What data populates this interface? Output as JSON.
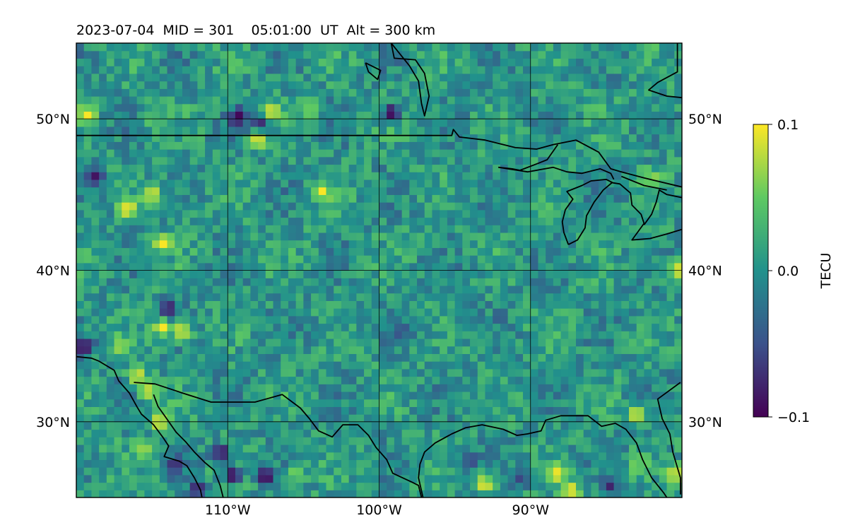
{
  "chart_data": {
    "type": "heatmap",
    "title": "2023-07-04  MID = 301    05:01:00  UT  Alt = 300 km",
    "map": {
      "lon_range": [
        -120,
        -80
      ],
      "lat_range": [
        25,
        55
      ],
      "lon_ticks": [
        {
          "value": -110,
          "label": "110°W"
        },
        {
          "value": -100,
          "label": "100°W"
        },
        {
          "value": -90,
          "label": "90°W"
        }
      ],
      "lat_ticks": [
        {
          "value": 50,
          "label": "50°N"
        },
        {
          "value": 40,
          "label": "40°N"
        },
        {
          "value": 30,
          "label": "30°N"
        }
      ],
      "grid": true,
      "grid_lines_lon": [
        -110,
        -100,
        -90
      ],
      "grid_lines_lat": [
        30,
        40,
        50
      ],
      "cell_size_deg": 0.5
    },
    "colorbar": {
      "label": "TECU",
      "min": -0.1,
      "max": 0.1,
      "ticks": [
        {
          "value": 0.1,
          "label": "0.1"
        },
        {
          "value": 0.0,
          "label": "0.0"
        },
        {
          "value": -0.1,
          "label": "−0.1"
        }
      ],
      "colormap": "viridis",
      "colormap_stops": [
        "#440154",
        "#3b528b",
        "#21918c",
        "#5ec962",
        "#fde725"
      ]
    },
    "field": {
      "background_mean": 0.005,
      "noise_amplitude": 0.03,
      "description_points": [
        {
          "lon": -119.3,
          "lat": 50.3,
          "value": 0.1
        },
        {
          "lon": -115.0,
          "lat": 50.0,
          "value": 0.05
        },
        {
          "lon": -109.3,
          "lat": 50.1,
          "value": -0.1
        },
        {
          "lon": -107.8,
          "lat": 49.6,
          "value": -0.09
        },
        {
          "lon": -107.0,
          "lat": 50.5,
          "value": 0.1
        },
        {
          "lon": -104.5,
          "lat": 50.5,
          "value": 0.07
        },
        {
          "lon": -99.2,
          "lat": 50.4,
          "value": -0.1
        },
        {
          "lon": -108.0,
          "lat": 48.7,
          "value": 0.1
        },
        {
          "lon": -118.7,
          "lat": 46.2,
          "value": -0.09
        },
        {
          "lon": -115.0,
          "lat": 45.0,
          "value": 0.1
        },
        {
          "lon": -116.6,
          "lat": 44.1,
          "value": 0.1
        },
        {
          "lon": -103.8,
          "lat": 45.2,
          "value": 0.1
        },
        {
          "lon": -114.3,
          "lat": 41.8,
          "value": 0.1
        },
        {
          "lon": -117.0,
          "lat": 35.0,
          "value": 0.08
        },
        {
          "lon": -119.5,
          "lat": 35.0,
          "value": -0.1
        },
        {
          "lon": -114.0,
          "lat": 37.5,
          "value": -0.09
        },
        {
          "lon": -114.3,
          "lat": 36.2,
          "value": 0.1
        },
        {
          "lon": -113.0,
          "lat": 36.0,
          "value": 0.1
        },
        {
          "lon": -116.0,
          "lat": 33.0,
          "value": 0.1
        },
        {
          "lon": -115.2,
          "lat": 32.0,
          "value": 0.09
        },
        {
          "lon": -114.5,
          "lat": 30.0,
          "value": 0.1
        },
        {
          "lon": -115.5,
          "lat": 28.2,
          "value": 0.07
        },
        {
          "lon": -113.5,
          "lat": 27.2,
          "value": -0.08
        },
        {
          "lon": -110.5,
          "lat": 28.0,
          "value": -0.1
        },
        {
          "lon": -109.7,
          "lat": 26.5,
          "value": -0.1
        },
        {
          "lon": -107.5,
          "lat": 26.4,
          "value": -0.1
        },
        {
          "lon": -105.5,
          "lat": 26.7,
          "value": 0.06
        },
        {
          "lon": -112.0,
          "lat": 25.6,
          "value": -0.08
        },
        {
          "lon": -98.5,
          "lat": 36.0,
          "value": -0.05
        },
        {
          "lon": -94.0,
          "lat": 27.5,
          "value": -0.06
        },
        {
          "lon": -93.0,
          "lat": 25.9,
          "value": 0.1
        },
        {
          "lon": -90.6,
          "lat": 26.3,
          "value": -0.06
        },
        {
          "lon": -88.3,
          "lat": 26.6,
          "value": 0.1
        },
        {
          "lon": -87.3,
          "lat": 25.5,
          "value": 0.1
        },
        {
          "lon": -84.8,
          "lat": 25.8,
          "value": -0.08
        },
        {
          "lon": -83.0,
          "lat": 30.5,
          "value": 0.1
        },
        {
          "lon": -80.5,
          "lat": 26.5,
          "value": 0.1
        },
        {
          "lon": -83.0,
          "lat": 27.0,
          "value": 0.06
        },
        {
          "lon": -80.3,
          "lat": 40.0,
          "value": 0.1
        },
        {
          "lon": -82.0,
          "lat": 46.0,
          "value": 0.07
        }
      ]
    },
    "coastlines": [
      [
        [
          -120,
          48.9
        ],
        [
          -115,
          48.9
        ],
        [
          -110,
          48.9
        ],
        [
          -105,
          48.9
        ],
        [
          -100,
          48.9
        ],
        [
          -95.2,
          48.9
        ],
        [
          -95.1,
          49.3
        ],
        [
          -94.7,
          48.8
        ],
        [
          -93,
          48.6
        ],
        [
          -91,
          48.1
        ],
        [
          -89.6,
          48
        ],
        [
          -88.5,
          48.3
        ],
        [
          -87,
          48.6
        ],
        [
          -85.5,
          47.8
        ],
        [
          -84.7,
          46.7
        ],
        [
          -84,
          46.5
        ],
        [
          -82.5,
          46.1
        ],
        [
          -80,
          45.5
        ]
      ],
      [
        [
          -120,
          34.3
        ],
        [
          -119,
          34.2
        ],
        [
          -118.5,
          34
        ],
        [
          -117.5,
          33.4
        ],
        [
          -117.2,
          32.7
        ],
        [
          -116.5,
          31.9
        ],
        [
          -116,
          31
        ],
        [
          -115.7,
          30.5
        ],
        [
          -114.9,
          29.8
        ],
        [
          -114.3,
          29
        ],
        [
          -113.9,
          28.4
        ],
        [
          -114.2,
          27.7
        ],
        [
          -113.2,
          27.4
        ],
        [
          -112.7,
          27.1
        ],
        [
          -112.2,
          26.3
        ],
        [
          -111.8,
          25.5
        ],
        [
          -111.7,
          25
        ]
      ],
      [
        [
          -116.2,
          32.6
        ],
        [
          -114.8,
          32.5
        ],
        [
          -113,
          31.9
        ],
        [
          -111.1,
          31.3
        ],
        [
          -108.2,
          31.3
        ],
        [
          -106.4,
          31.8
        ],
        [
          -105.2,
          30.9
        ],
        [
          -104.6,
          30.2
        ],
        [
          -104,
          29.4
        ],
        [
          -103.1,
          29
        ],
        [
          -102.4,
          29.8
        ],
        [
          -101.4,
          29.8
        ],
        [
          -100.7,
          29.1
        ],
        [
          -100.2,
          28.3
        ],
        [
          -99.5,
          27.5
        ],
        [
          -99.1,
          26.6
        ],
        [
          -97.8,
          26.0
        ],
        [
          -97.4,
          25.8
        ],
        [
          -97.2,
          25.0
        ]
      ],
      [
        [
          -114.9,
          31.8
        ],
        [
          -114.6,
          31
        ],
        [
          -114.1,
          30.3
        ],
        [
          -113.4,
          29.3
        ],
        [
          -112.8,
          28.7
        ],
        [
          -112.2,
          28
        ],
        [
          -111.5,
          27.3
        ],
        [
          -110.9,
          26.8
        ],
        [
          -110.5,
          25.8
        ],
        [
          -110.3,
          25.0
        ]
      ],
      [
        [
          -97.1,
          25.0
        ],
        [
          -97.4,
          26.3
        ],
        [
          -97.3,
          27.2
        ],
        [
          -97.0,
          28
        ],
        [
          -96.3,
          28.6
        ],
        [
          -95.2,
          29.2
        ],
        [
          -94.3,
          29.6
        ],
        [
          -93.2,
          29.8
        ],
        [
          -91.8,
          29.5
        ],
        [
          -90.9,
          29.1
        ],
        [
          -90.2,
          29.2
        ],
        [
          -89.3,
          29.4
        ],
        [
          -89.0,
          30.1
        ],
        [
          -88.0,
          30.4
        ],
        [
          -87.2,
          30.4
        ],
        [
          -86.2,
          30.4
        ],
        [
          -85.3,
          29.7
        ],
        [
          -84.4,
          29.9
        ],
        [
          -83.7,
          29.5
        ],
        [
          -83.0,
          28.6
        ],
        [
          -82.6,
          27.5
        ],
        [
          -82.0,
          26.3
        ],
        [
          -81.2,
          25.3
        ],
        [
          -81.0,
          25.0
        ]
      ],
      [
        [
          -80.1,
          25.2
        ],
        [
          -80.1,
          26.3
        ],
        [
          -80.6,
          28
        ],
        [
          -80.8,
          29.2
        ],
        [
          -81.3,
          30.2
        ],
        [
          -81.6,
          31.5
        ],
        [
          -80.1,
          32.6
        ]
      ],
      [
        [
          -120,
          54.1
        ],
        [
          -121,
          54.1
        ]
      ],
      [
        [
          -80.3,
          55.0
        ],
        [
          -80.3,
          53.1
        ],
        [
          -81.6,
          52.4
        ],
        [
          -82.2,
          51.9
        ],
        [
          -81.0,
          51.5
        ],
        [
          -80.0,
          51.4
        ]
      ],
      [
        [
          -88.2,
          48.3
        ],
        [
          -88.9,
          47.3
        ],
        [
          -89.4,
          47.1
        ],
        [
          -90.7,
          46.6
        ],
        [
          -91.2,
          46.7
        ],
        [
          -92.1,
          46.8
        ],
        [
          -90.2,
          46.5
        ],
        [
          -88.5,
          46.8
        ],
        [
          -87.6,
          46.5
        ],
        [
          -86.6,
          46.4
        ],
        [
          -85.4,
          46.7
        ],
        [
          -84.7,
          46.4
        ],
        [
          -84.5,
          46.0
        ]
      ],
      [
        [
          -87.5,
          41.7
        ],
        [
          -87.8,
          42.5
        ],
        [
          -87.9,
          43.2
        ],
        [
          -87.7,
          44.0
        ],
        [
          -87.2,
          44.7
        ],
        [
          -87.6,
          45.2
        ],
        [
          -86.6,
          45.6
        ],
        [
          -86.0,
          45.9
        ],
        [
          -85.0,
          46.0
        ],
        [
          -84.6,
          45.8
        ],
        [
          -85.2,
          45.3
        ],
        [
          -85.8,
          44.5
        ],
        [
          -86.3,
          43.6
        ],
        [
          -86.4,
          42.8
        ],
        [
          -86.9,
          42.0
        ],
        [
          -87.5,
          41.7
        ]
      ],
      [
        [
          -84.7,
          45.8
        ],
        [
          -84.1,
          45.7
        ],
        [
          -83.4,
          45.1
        ],
        [
          -83.3,
          44.3
        ],
        [
          -82.7,
          43.7
        ],
        [
          -82.5,
          43.1
        ],
        [
          -83.3,
          42.0
        ],
        [
          -82.1,
          42.1
        ],
        [
          -81.0,
          42.4
        ],
        [
          -80.0,
          42.7
        ]
      ],
      [
        [
          -82.5,
          43.0
        ],
        [
          -82.0,
          43.7
        ],
        [
          -81.7,
          44.5
        ],
        [
          -81.5,
          45.3
        ],
        [
          -81.0,
          45.0
        ],
        [
          -80.0,
          44.8
        ]
      ],
      [
        [
          -81.0,
          45.3
        ],
        [
          -82.5,
          45.6
        ],
        [
          -84.0,
          46.2
        ]
      ],
      [
        [
          -99.2,
          55.0
        ],
        [
          -98.0,
          53.5
        ],
        [
          -97.4,
          52.5
        ],
        [
          -97.2,
          51.0
        ],
        [
          -97.0,
          50.2
        ],
        [
          -96.7,
          51.5
        ],
        [
          -97.0,
          53.0
        ],
        [
          -97.6,
          53.9
        ],
        [
          -99.0,
          54.0
        ],
        [
          -99.2,
          55.0
        ]
      ],
      [
        [
          -100.9,
          53.7
        ],
        [
          -99.9,
          53.2
        ],
        [
          -100.1,
          52.6
        ],
        [
          -100.7,
          53.1
        ],
        [
          -100.9,
          53.7
        ]
      ]
    ]
  }
}
